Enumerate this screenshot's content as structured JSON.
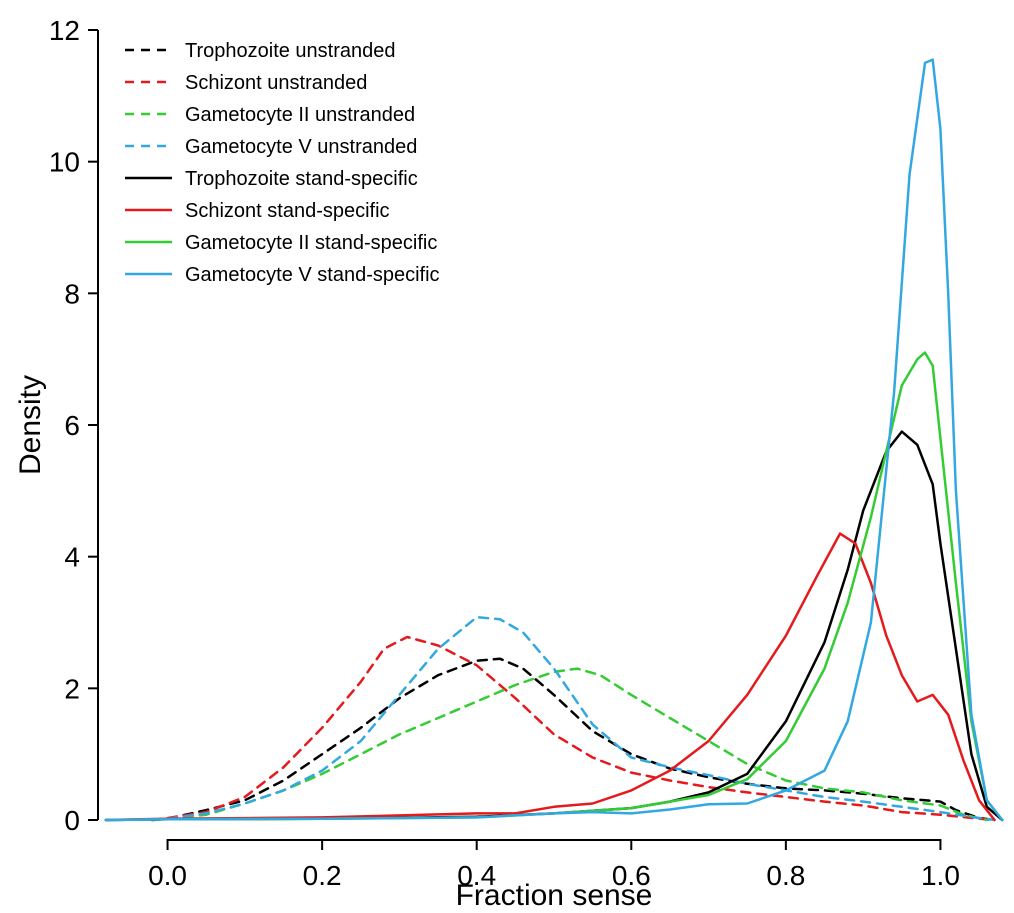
{
  "chart_data": {
    "type": "line",
    "xlabel": "Fraction sense",
    "ylabel": "Density",
    "xlim": [
      -0.09,
      1.09
    ],
    "ylim": [
      0,
      12
    ],
    "xticks": [
      "0.0",
      "0.2",
      "0.4",
      "0.6",
      "0.8",
      "1.0"
    ],
    "yticks": [
      "0",
      "2",
      "4",
      "6",
      "8",
      "10",
      "12"
    ],
    "legend_position": "top-left",
    "series": [
      {
        "name": "Trophozoite unstranded",
        "color": "#000000",
        "dashed": true,
        "points": [
          [
            -0.02,
            0
          ],
          [
            0.0,
            0.02
          ],
          [
            0.05,
            0.15
          ],
          [
            0.1,
            0.3
          ],
          [
            0.15,
            0.6
          ],
          [
            0.2,
            1.0
          ],
          [
            0.25,
            1.4
          ],
          [
            0.3,
            1.85
          ],
          [
            0.35,
            2.2
          ],
          [
            0.4,
            2.42
          ],
          [
            0.43,
            2.45
          ],
          [
            0.46,
            2.3
          ],
          [
            0.5,
            1.9
          ],
          [
            0.55,
            1.35
          ],
          [
            0.6,
            1.0
          ],
          [
            0.65,
            0.78
          ],
          [
            0.7,
            0.65
          ],
          [
            0.75,
            0.55
          ],
          [
            0.8,
            0.48
          ],
          [
            0.85,
            0.45
          ],
          [
            0.9,
            0.4
          ],
          [
            0.95,
            0.33
          ],
          [
            1.0,
            0.28
          ],
          [
            1.02,
            0.15
          ],
          [
            1.05,
            0.03
          ],
          [
            1.07,
            0
          ]
        ]
      },
      {
        "name": "Schizont unstranded",
        "color": "#e41a1c",
        "dashed": true,
        "points": [
          [
            -0.02,
            0
          ],
          [
            0.0,
            0.03
          ],
          [
            0.05,
            0.12
          ],
          [
            0.1,
            0.35
          ],
          [
            0.15,
            0.8
          ],
          [
            0.2,
            1.4
          ],
          [
            0.25,
            2.1
          ],
          [
            0.28,
            2.6
          ],
          [
            0.31,
            2.78
          ],
          [
            0.35,
            2.65
          ],
          [
            0.4,
            2.35
          ],
          [
            0.45,
            1.85
          ],
          [
            0.5,
            1.3
          ],
          [
            0.55,
            0.95
          ],
          [
            0.6,
            0.72
          ],
          [
            0.65,
            0.6
          ],
          [
            0.7,
            0.5
          ],
          [
            0.75,
            0.42
          ],
          [
            0.8,
            0.35
          ],
          [
            0.85,
            0.28
          ],
          [
            0.9,
            0.22
          ],
          [
            0.95,
            0.12
          ],
          [
            1.0,
            0.08
          ],
          [
            1.05,
            0.02
          ],
          [
            1.07,
            0
          ]
        ]
      },
      {
        "name": "Gametocyte II unstranded",
        "color": "#33cc33",
        "dashed": true,
        "points": [
          [
            -0.02,
            0
          ],
          [
            0.0,
            0.02
          ],
          [
            0.05,
            0.08
          ],
          [
            0.1,
            0.25
          ],
          [
            0.15,
            0.45
          ],
          [
            0.2,
            0.7
          ],
          [
            0.25,
            1.0
          ],
          [
            0.3,
            1.3
          ],
          [
            0.35,
            1.55
          ],
          [
            0.4,
            1.8
          ],
          [
            0.45,
            2.05
          ],
          [
            0.5,
            2.25
          ],
          [
            0.53,
            2.3
          ],
          [
            0.56,
            2.2
          ],
          [
            0.6,
            1.9
          ],
          [
            0.65,
            1.55
          ],
          [
            0.7,
            1.2
          ],
          [
            0.75,
            0.85
          ],
          [
            0.8,
            0.6
          ],
          [
            0.85,
            0.48
          ],
          [
            0.9,
            0.42
          ],
          [
            0.95,
            0.3
          ],
          [
            1.0,
            0.22
          ],
          [
            1.03,
            0.08
          ],
          [
            1.06,
            0
          ]
        ]
      },
      {
        "name": "Gametocyte V unstranded",
        "color": "#33a8e0",
        "dashed": true,
        "points": [
          [
            -0.02,
            0
          ],
          [
            0.0,
            0.02
          ],
          [
            0.05,
            0.1
          ],
          [
            0.1,
            0.25
          ],
          [
            0.15,
            0.45
          ],
          [
            0.2,
            0.75
          ],
          [
            0.25,
            1.2
          ],
          [
            0.3,
            1.9
          ],
          [
            0.35,
            2.6
          ],
          [
            0.4,
            3.08
          ],
          [
            0.43,
            3.05
          ],
          [
            0.46,
            2.85
          ],
          [
            0.5,
            2.3
          ],
          [
            0.55,
            1.45
          ],
          [
            0.6,
            0.95
          ],
          [
            0.65,
            0.8
          ],
          [
            0.7,
            0.68
          ],
          [
            0.75,
            0.55
          ],
          [
            0.8,
            0.45
          ],
          [
            0.85,
            0.35
          ],
          [
            0.9,
            0.28
          ],
          [
            0.95,
            0.2
          ],
          [
            1.0,
            0.12
          ],
          [
            1.05,
            0.03
          ],
          [
            1.07,
            0
          ]
        ]
      },
      {
        "name": "Trophozoite stand-specific",
        "color": "#000000",
        "dashed": false,
        "points": [
          [
            -0.08,
            0
          ],
          [
            0.0,
            0.01
          ],
          [
            0.2,
            0.02
          ],
          [
            0.4,
            0.05
          ],
          [
            0.5,
            0.1
          ],
          [
            0.6,
            0.18
          ],
          [
            0.65,
            0.28
          ],
          [
            0.7,
            0.42
          ],
          [
            0.75,
            0.7
          ],
          [
            0.8,
            1.5
          ],
          [
            0.85,
            2.7
          ],
          [
            0.88,
            3.8
          ],
          [
            0.9,
            4.7
          ],
          [
            0.93,
            5.6
          ],
          [
            0.95,
            5.9
          ],
          [
            0.97,
            5.7
          ],
          [
            0.99,
            5.1
          ],
          [
            1.0,
            4.2
          ],
          [
            1.02,
            2.6
          ],
          [
            1.04,
            1.0
          ],
          [
            1.06,
            0.2
          ],
          [
            1.08,
            0
          ]
        ]
      },
      {
        "name": "Schizont stand-specific",
        "color": "#e41a1c",
        "dashed": false,
        "points": [
          [
            -0.08,
            0
          ],
          [
            0.0,
            0.02
          ],
          [
            0.2,
            0.04
          ],
          [
            0.4,
            0.1
          ],
          [
            0.45,
            0.1
          ],
          [
            0.5,
            0.2
          ],
          [
            0.55,
            0.25
          ],
          [
            0.6,
            0.45
          ],
          [
            0.65,
            0.75
          ],
          [
            0.7,
            1.2
          ],
          [
            0.75,
            1.9
          ],
          [
            0.8,
            2.8
          ],
          [
            0.84,
            3.7
          ],
          [
            0.87,
            4.35
          ],
          [
            0.89,
            4.2
          ],
          [
            0.91,
            3.6
          ],
          [
            0.93,
            2.8
          ],
          [
            0.95,
            2.2
          ],
          [
            0.97,
            1.8
          ],
          [
            0.99,
            1.9
          ],
          [
            1.01,
            1.6
          ],
          [
            1.03,
            0.9
          ],
          [
            1.05,
            0.3
          ],
          [
            1.07,
            0
          ]
        ]
      },
      {
        "name": "Gametocyte II stand-specific",
        "color": "#33cc33",
        "dashed": false,
        "points": [
          [
            -0.08,
            0
          ],
          [
            0.0,
            0.01
          ],
          [
            0.2,
            0.02
          ],
          [
            0.4,
            0.04
          ],
          [
            0.5,
            0.1
          ],
          [
            0.6,
            0.18
          ],
          [
            0.65,
            0.28
          ],
          [
            0.7,
            0.38
          ],
          [
            0.75,
            0.62
          ],
          [
            0.8,
            1.2
          ],
          [
            0.85,
            2.3
          ],
          [
            0.88,
            3.3
          ],
          [
            0.91,
            4.6
          ],
          [
            0.93,
            5.6
          ],
          [
            0.95,
            6.6
          ],
          [
            0.97,
            7.0
          ],
          [
            0.98,
            7.1
          ],
          [
            0.99,
            6.9
          ],
          [
            1.0,
            5.8
          ],
          [
            1.02,
            3.6
          ],
          [
            1.04,
            1.5
          ],
          [
            1.06,
            0.3
          ],
          [
            1.08,
            0
          ]
        ]
      },
      {
        "name": "Gametocyte V stand-specific",
        "color": "#33a8e0",
        "dashed": false,
        "points": [
          [
            -0.08,
            0
          ],
          [
            0.0,
            0.01
          ],
          [
            0.2,
            0.02
          ],
          [
            0.4,
            0.04
          ],
          [
            0.5,
            0.1
          ],
          [
            0.55,
            0.12
          ],
          [
            0.6,
            0.1
          ],
          [
            0.65,
            0.16
          ],
          [
            0.7,
            0.24
          ],
          [
            0.75,
            0.25
          ],
          [
            0.8,
            0.45
          ],
          [
            0.85,
            0.75
          ],
          [
            0.88,
            1.5
          ],
          [
            0.91,
            3.0
          ],
          [
            0.94,
            6.5
          ],
          [
            0.96,
            9.8
          ],
          [
            0.98,
            11.5
          ],
          [
            0.99,
            11.55
          ],
          [
            1.0,
            10.5
          ],
          [
            1.01,
            8.0
          ],
          [
            1.02,
            5.0
          ],
          [
            1.04,
            1.6
          ],
          [
            1.06,
            0.3
          ],
          [
            1.08,
            0
          ]
        ]
      }
    ]
  }
}
